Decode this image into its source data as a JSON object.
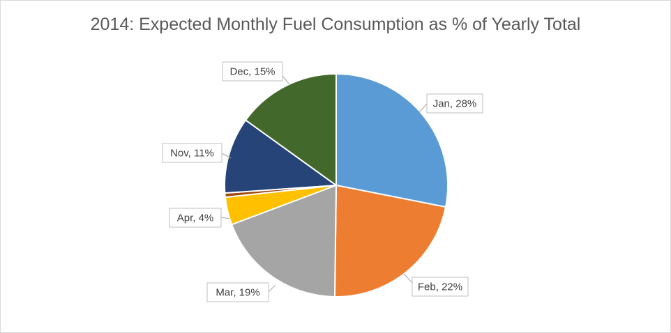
{
  "chart_data": {
    "type": "pie",
    "title": "2014: Expected Monthly Fuel Consumption as % of Yearly Total",
    "unit": "%",
    "slices": [
      {
        "label": "Jan",
        "value": 28,
        "color": "#5b9bd5",
        "show_label": true
      },
      {
        "label": "Feb",
        "value": 22,
        "color": "#ed7d31",
        "show_label": true
      },
      {
        "label": "Mar",
        "value": 19,
        "color": "#a5a5a5",
        "show_label": true
      },
      {
        "label": "Apr",
        "value": 4,
        "color": "#ffc000",
        "show_label": true
      },
      {
        "label": "",
        "value": 0.6,
        "color": "#9e480e",
        "show_label": false
      },
      {
        "label": "Nov",
        "value": 11,
        "color": "#264478",
        "show_label": true
      },
      {
        "label": "Dec",
        "value": 15,
        "color": "#43682b",
        "show_label": true
      }
    ],
    "start_angle_deg": 0,
    "direction": "clockwise",
    "legend": "none",
    "slice_border_color": "#ffffff"
  }
}
